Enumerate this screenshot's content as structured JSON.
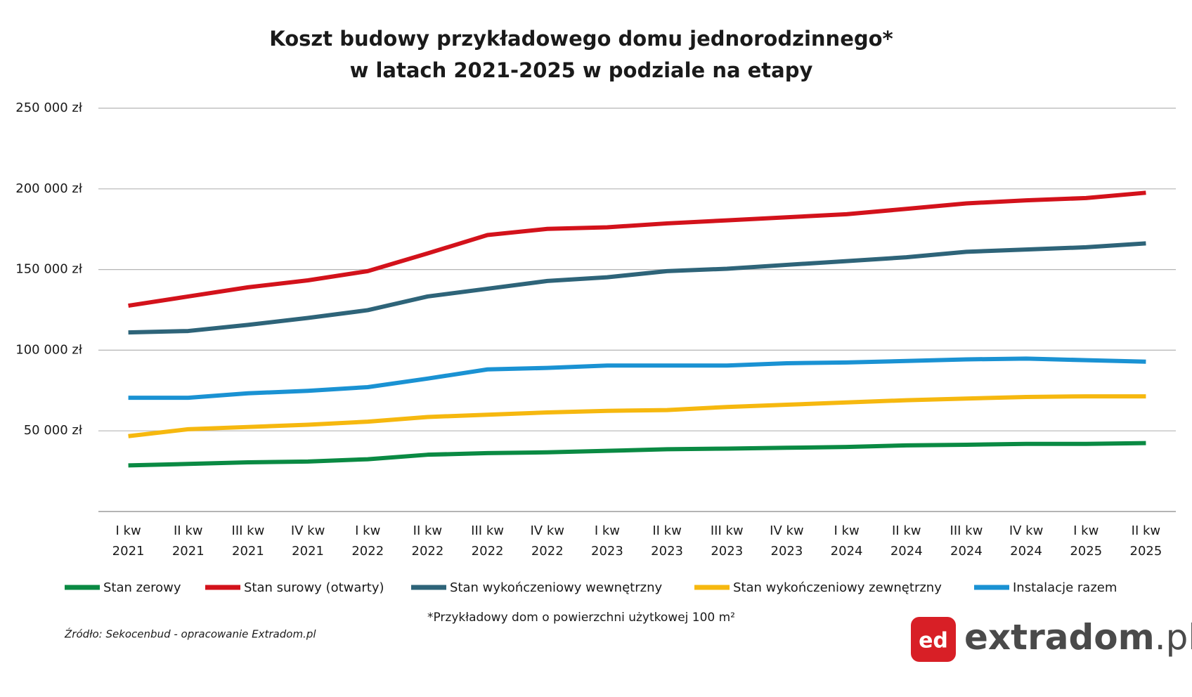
{
  "chart_data": {
    "type": "line",
    "title": [
      "Koszt budowy przykładowego domu jednorodzinnego*",
      "w latach 2021-2025 w podziale na etapy"
    ],
    "categories": [
      "I kw 2021",
      "II kw 2021",
      "III kw 2021",
      "IV kw 2021",
      "I kw 2022",
      "II kw 2022",
      "III kw 2022",
      "IV kw 2022",
      "I kw 2023",
      "II kw 2023",
      "III kw 2023",
      "IV kw 2023",
      "I kw 2024",
      "II kw 2024",
      "III kw 2024",
      "IV kw 2024",
      "I kw 2025",
      "II kw 2025"
    ],
    "series": [
      {
        "name": "Stan zerowy",
        "color": "#0a8a43",
        "values": [
          28600,
          29500,
          30500,
          31000,
          32400,
          35200,
          36200,
          36700,
          37600,
          38600,
          39000,
          39500,
          40000,
          41000,
          41400,
          41900,
          41900,
          42400
        ]
      },
      {
        "name": "Stan surowy (otwarty)",
        "color": "#d3121b",
        "values": [
          127600,
          133300,
          139000,
          143300,
          149000,
          160000,
          171400,
          175200,
          176200,
          178600,
          180500,
          182400,
          184300,
          187600,
          191000,
          192900,
          194300,
          197600
        ]
      },
      {
        "name": "Stan wykończeniowy wewnętrzny",
        "color": "#2e6479",
        "values": [
          111000,
          111900,
          115700,
          120000,
          124800,
          133300,
          138100,
          142900,
          145200,
          149000,
          150500,
          152900,
          155200,
          157600,
          161000,
          162400,
          163800,
          166200
        ]
      },
      {
        "name": "Stan wykończeniowy zewnętrzny",
        "color": "#f6b80f",
        "values": [
          46700,
          51000,
          52400,
          53800,
          55700,
          58600,
          60000,
          61400,
          62400,
          62900,
          64800,
          66200,
          67600,
          69000,
          70000,
          71000,
          71400,
          71400
        ]
      },
      {
        "name": "Instalacje razem",
        "color": "#1a92d3",
        "values": [
          70500,
          70500,
          73300,
          74800,
          77100,
          82400,
          88100,
          89000,
          90500,
          90500,
          90500,
          91900,
          92400,
          93300,
          94300,
          94800,
          93800,
          92900
        ]
      }
    ],
    "ylim": [
      0,
      250000
    ],
    "yticks": [
      {
        "value": 50000,
        "label": "50 000 zł"
      },
      {
        "value": 100000,
        "label": "100 000 zł"
      },
      {
        "value": 150000,
        "label": "150 000 zł"
      },
      {
        "value": 200000,
        "label": "200 000 zł"
      },
      {
        "value": 250000,
        "label": "250 000 zł"
      }
    ],
    "grid": true,
    "footnote": "*Przykładowy dom o powierzchni użytkowej 100 m²",
    "source": "Źródło: Sekocenbud - opracowanie Extradom.pl"
  },
  "branding": {
    "badge": "ed",
    "text": "extradom",
    "suffix": ".pl"
  }
}
